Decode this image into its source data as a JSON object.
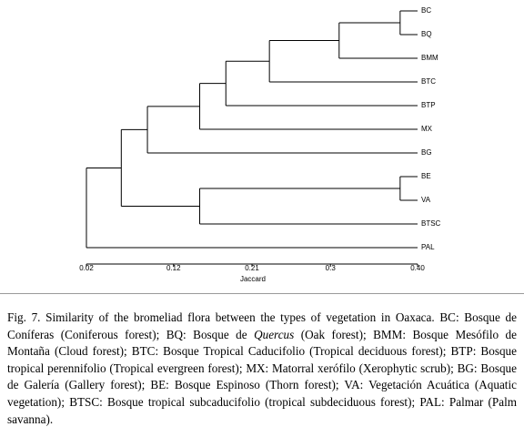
{
  "chart_data": {
    "type": "dendrogram",
    "xlabel": "Jaccard",
    "xlim": [
      0.02,
      0.4
    ],
    "xticks": [
      0.02,
      0.12,
      0.21,
      0.3,
      {
        "value": 0.4,
        "label": "0.40"
      }
    ],
    "tree": {
      "height": 0.02,
      "children": [
        {
          "height": 0.06,
          "children": [
            {
              "height": 0.09,
              "children": [
                {
                  "height": 0.15,
                  "children": [
                    {
                      "height": 0.18,
                      "children": [
                        {
                          "height": 0.23,
                          "children": [
                            {
                              "height": 0.31,
                              "children": [
                                {
                                  "height": 0.38,
                                  "children": [
                                    {
                                      "label": "BC"
                                    },
                                    {
                                      "label": "BQ"
                                    }
                                  ]
                                },
                                {
                                  "label": "BMM"
                                }
                              ]
                            },
                            {
                              "label": "BTC"
                            }
                          ]
                        },
                        {
                          "label": "BTP"
                        }
                      ]
                    },
                    {
                      "label": "MX"
                    }
                  ]
                },
                {
                  "label": "BG"
                }
              ]
            },
            {
              "height": 0.15,
              "children": [
                {
                  "height": 0.38,
                  "children": [
                    {
                      "label": "BE"
                    },
                    {
                      "label": "VA"
                    }
                  ]
                },
                {
                  "label": "BTSC"
                }
              ]
            }
          ]
        },
        {
          "label": "PAL"
        }
      ]
    }
  },
  "caption": [
    "Fig. 7. Similarity of the bromeliad flora between the types of vegetation in Oaxaca. BC: Bosque de Coníferas (Coniferous forest); BQ: Bosque de ",
    "Quercus",
    " (Oak forest); BMM: Bosque Mesófilo de Montaña (Cloud forest); BTC: Bosque Tropical Caducifolio (Tropical deciduous forest); BTP: Bosque tropical perennifolio (Tropical evergreen forest); MX: Matorral xerófilo (Xerophytic scrub); BG: Bosque de Galería (Gallery forest); BE: Bosque Espinoso (Thorn forest); VA: Vegetación Acuática (Aquatic vegetation); BTSC: Bosque tropical subcaducifolio (tropical subdeciduous forest); PAL: Palmar (Palm savanna)."
  ]
}
